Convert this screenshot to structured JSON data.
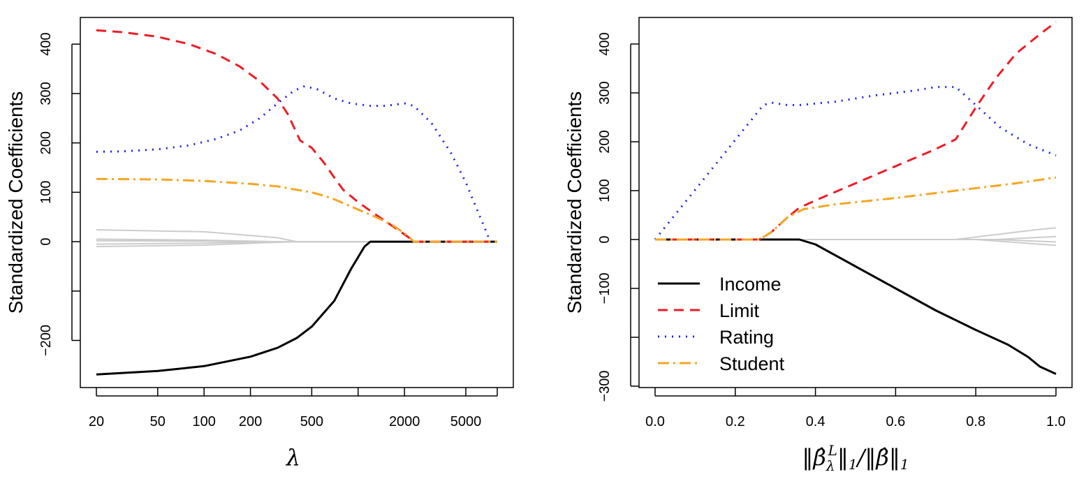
{
  "chart_data": [
    {
      "type": "line",
      "panel": "left",
      "xscale": "log",
      "xlim": [
        20,
        8000
      ],
      "ylim": [
        -270,
        430
      ],
      "ylabel": "Standardized Coefficients",
      "xlabel": "λ",
      "xticks": [
        20,
        50,
        100,
        200,
        500,
        2000,
        5000
      ],
      "xtick_labels": [
        "20",
        "50",
        "100",
        "200",
        "500",
        "2000",
        "5000"
      ],
      "extra_xticks": [
        1000,
        8000
      ],
      "yticks": [
        -200,
        -100,
        0,
        100,
        200,
        300,
        400
      ],
      "ytick_labels": [
        "−200",
        "",
        "0",
        "100",
        "200",
        "300",
        "400"
      ],
      "series": [
        {
          "name": "Income",
          "color": "#000000",
          "style": "solid",
          "width": 3,
          "x": [
            20,
            50,
            100,
            200,
            300,
            400,
            500,
            700,
            900,
            1100,
            1200,
            2000,
            8000
          ],
          "y": [
            -269,
            -262,
            -252,
            -233,
            -215,
            -195,
            -172,
            -120,
            -55,
            -10,
            0,
            0,
            0
          ]
        },
        {
          "name": "Limit",
          "color": "#ee1c25",
          "style": "dashed",
          "width": 3,
          "x": [
            20,
            30,
            50,
            80,
            120,
            170,
            230,
            300,
            350,
            420,
            500,
            600,
            700,
            800,
            1000,
            1300,
            1700,
            2100,
            2300,
            8000
          ],
          "y": [
            428,
            424,
            415,
            400,
            380,
            355,
            325,
            290,
            258,
            205,
            190,
            160,
            130,
            105,
            80,
            55,
            30,
            10,
            0,
            0
          ]
        },
        {
          "name": "Rating",
          "color": "#1a22e8",
          "style": "dotted",
          "width": 3,
          "x": [
            20,
            30,
            50,
            80,
            120,
            170,
            230,
            300,
            380,
            450,
            550,
            700,
            900,
            1200,
            1500,
            2000,
            2300,
            3000,
            4000,
            5000,
            6000,
            6800,
            7200
          ],
          "y": [
            182,
            183,
            187,
            195,
            208,
            225,
            250,
            280,
            305,
            315,
            308,
            290,
            280,
            275,
            275,
            280,
            275,
            240,
            180,
            120,
            60,
            20,
            0
          ]
        },
        {
          "name": "Student",
          "color": "#f5a623",
          "style": "dashdot",
          "width": 3,
          "x": [
            20,
            50,
            100,
            200,
            300,
            400,
            500,
            600,
            700,
            800,
            1000,
            1300,
            1700,
            2100,
            2300,
            8000
          ],
          "y": [
            127,
            126,
            123,
            117,
            112,
            105,
            100,
            93,
            86,
            78,
            65,
            50,
            32,
            12,
            0,
            0
          ]
        },
        {
          "name": "other1",
          "color": "#cccccc",
          "style": "solid",
          "width": 2,
          "x": [
            20,
            100,
            300,
            400,
            8000
          ],
          "y": [
            24,
            20,
            8,
            0,
            0
          ]
        },
        {
          "name": "other2",
          "color": "#cccccc",
          "style": "solid",
          "width": 2,
          "x": [
            20,
            100,
            250,
            400,
            8000
          ],
          "y": [
            -10,
            -7,
            -2,
            0,
            0
          ]
        },
        {
          "name": "other3",
          "color": "#cccccc",
          "style": "solid",
          "width": 2,
          "x": [
            20,
            100,
            300,
            8000
          ],
          "y": [
            5,
            3,
            0,
            0
          ]
        },
        {
          "name": "other4",
          "color": "#cccccc",
          "style": "solid",
          "width": 2,
          "x": [
            20,
            100,
            300,
            8000
          ],
          "y": [
            -5,
            -3,
            0,
            0
          ]
        },
        {
          "name": "other5",
          "color": "#cccccc",
          "style": "solid",
          "width": 2,
          "x": [
            20,
            100,
            300,
            8000
          ],
          "y": [
            2,
            1,
            0,
            0
          ]
        }
      ]
    },
    {
      "type": "line",
      "panel": "right",
      "xscale": "linear",
      "xlim": [
        0,
        1
      ],
      "ylim": [
        -300,
        430
      ],
      "ylabel": "Standardized Coefficients",
      "xlabel": "‖β̂_λ^L‖₁/‖β̂‖₁",
      "xticks": [
        0.0,
        0.2,
        0.4,
        0.6,
        0.8,
        1.0
      ],
      "xtick_labels": [
        "0.0",
        "0.2",
        "0.4",
        "0.6",
        "0.8",
        "1.0"
      ],
      "yticks": [
        -300,
        -100,
        0,
        100,
        200,
        300,
        400
      ],
      "ytick_labels": [
        "−300",
        "−100",
        "0",
        "100",
        "200",
        "300",
        "400"
      ],
      "extra_yticks": [
        -200
      ],
      "legend": {
        "position": "bottom-left",
        "entries": [
          "Income",
          "Limit",
          "Rating",
          "Student"
        ]
      },
      "series": [
        {
          "name": "Income",
          "color": "#000000",
          "style": "solid",
          "width": 3,
          "x": [
            0,
            0.36,
            0.4,
            0.5,
            0.6,
            0.7,
            0.8,
            0.88,
            0.93,
            0.96,
            1.0
          ],
          "y": [
            0,
            0,
            -10,
            -55,
            -100,
            -145,
            -185,
            -215,
            -240,
            -260,
            -275
          ]
        },
        {
          "name": "Limit",
          "color": "#ee1c25",
          "style": "dashed",
          "width": 3,
          "x": [
            0,
            0.26,
            0.29,
            0.33,
            0.36,
            0.4,
            0.5,
            0.6,
            0.7,
            0.75,
            0.8,
            0.85,
            0.9,
            0.93,
            0.96,
            1.0
          ],
          "y": [
            0,
            0,
            15,
            45,
            65,
            80,
            115,
            150,
            185,
            205,
            270,
            330,
            380,
            400,
            420,
            445
          ]
        },
        {
          "name": "Rating",
          "color": "#1a22e8",
          "style": "dotted",
          "width": 3,
          "x": [
            0,
            0.27,
            0.29,
            0.33,
            0.36,
            0.45,
            0.55,
            0.65,
            0.7,
            0.75,
            0.8,
            0.86,
            0.93,
            1.0
          ],
          "y": [
            0,
            275,
            280,
            275,
            275,
            282,
            295,
            305,
            312,
            312,
            275,
            230,
            195,
            172
          ]
        },
        {
          "name": "Student",
          "color": "#f5a623",
          "style": "dashdot",
          "width": 3,
          "x": [
            0,
            0.26,
            0.29,
            0.33,
            0.37,
            0.45,
            0.6,
            0.75,
            0.9,
            1.0
          ],
          "y": [
            0,
            0,
            15,
            45,
            62,
            72,
            85,
            100,
            115,
            127
          ]
        },
        {
          "name": "other1",
          "color": "#cccccc",
          "style": "solid",
          "width": 2,
          "x": [
            0,
            0.75,
            0.85,
            0.95,
            1.0
          ],
          "y": [
            0,
            0,
            10,
            20,
            24
          ]
        },
        {
          "name": "other2",
          "color": "#cccccc",
          "style": "solid",
          "width": 2,
          "x": [
            0,
            0.8,
            1.0
          ],
          "y": [
            0,
            0,
            -12
          ]
        },
        {
          "name": "other3",
          "color": "#cccccc",
          "style": "solid",
          "width": 2,
          "x": [
            0,
            0.85,
            1.0
          ],
          "y": [
            0,
            0,
            6
          ]
        },
        {
          "name": "other4",
          "color": "#cccccc",
          "style": "solid",
          "width": 2,
          "x": [
            0,
            0.85,
            1.0
          ],
          "y": [
            0,
            0,
            -5
          ]
        }
      ]
    }
  ]
}
